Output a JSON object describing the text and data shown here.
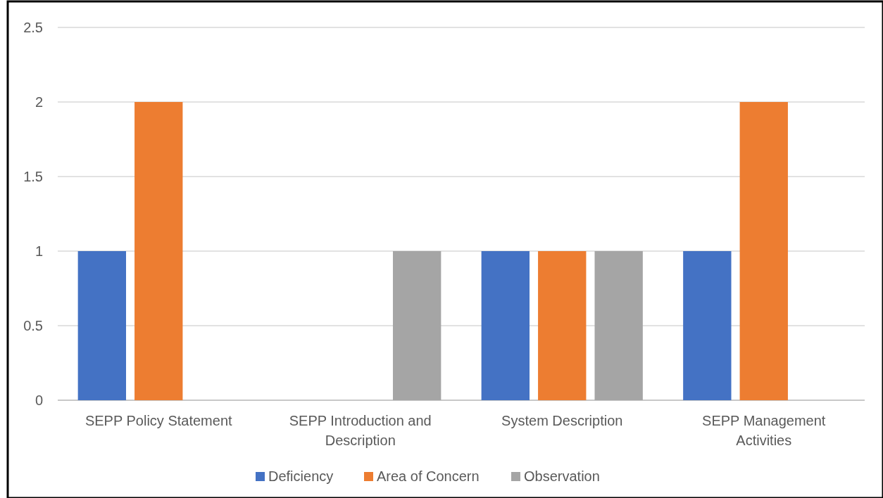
{
  "chart_data": {
    "type": "bar",
    "categories": [
      "SEPP Policy Statement",
      "SEPP Introduction and Description",
      "System Description",
      "SEPP Management Activities"
    ],
    "series": [
      {
        "name": "Deficiency",
        "color": "#4472c4",
        "values": [
          1,
          null,
          1,
          1
        ]
      },
      {
        "name": "Area of Concern",
        "color": "#ed7d31",
        "values": [
          2,
          null,
          1,
          2
        ]
      },
      {
        "name": "Observation",
        "color": "#a5a5a5",
        "values": [
          null,
          1,
          1,
          null
        ]
      }
    ],
    "ylim": [
      0,
      2.5
    ],
    "yticks": [
      0,
      0.5,
      1,
      1.5,
      2,
      2.5
    ],
    "grid": "y",
    "legend": "bottom"
  }
}
